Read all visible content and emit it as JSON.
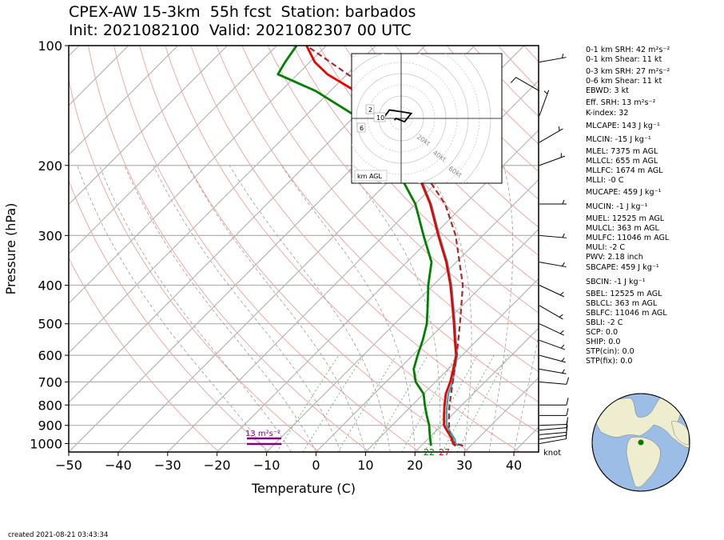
{
  "title": {
    "line1": "CPEX-AW 15-3km  55h fcst  Station: barbados",
    "line2": "Init: 2021082100  Valid: 2021082307 00 UTC"
  },
  "footer": {
    "created": "created 2021-08-21 03:43:34"
  },
  "params": [
    "0-1 km SRH: 42 m²s⁻²",
    "0-1 km Shear: 11 kt",
    "0-3 km SRH: 27 m²s⁻²",
    "0-6 km Shear: 11 kt",
    "EBWD: 3 kt",
    "Eff. SRH: 13 m²s⁻²",
    "K-index: 32",
    "MLCAPE: 143 J kg⁻¹",
    "MLCIN: -15 J kg⁻¹",
    "MLEL: 7375 m AGL",
    "MLLCL: 655 m AGL",
    "MLLFC: 1674 m AGL",
    "MLLI: -0 C",
    "MUCAPE: 459 J kg⁻¹",
    "MUCIN: -1 J kg⁻¹",
    "MUEL: 12525 m AGL",
    "MULCL: 363 m AGL",
    "MULFC: 11046 m AGL",
    "MULI: -2 C",
    "PWV: 2.18 inch",
    "SBCAPE: 459 J kg⁻¹",
    "SBCIN: -1 J kg⁻¹",
    "SBEL: 12525 m AGL",
    "SBLCL: 363 m AGL",
    "SBLFC: 11046 m AGL",
    "SBLI: -2 C",
    "SCP: 0.0",
    "SHIP: 0.0",
    "STP(cin): 0.0",
    "STP(fix): 0.0"
  ],
  "chart_data": {
    "type": "skew-t",
    "xlabel": "Temperature (C)",
    "ylabel": "Pressure (hPa)",
    "xlim": [
      -50,
      45
    ],
    "ylim": [
      1050,
      100
    ],
    "xticks": [
      "−50",
      "−40",
      "−30",
      "−20",
      "−10",
      "0",
      "10",
      "20",
      "30",
      "40"
    ],
    "yticks": [
      "100",
      "200",
      "300",
      "400",
      "500",
      "600",
      "700",
      "800",
      "900",
      "1000"
    ],
    "surface_labels": {
      "dewpoint": "22",
      "temperature": "27"
    },
    "srh_label": "13 m²s⁻²",
    "barb_unit": "knot",
    "colors": {
      "temperature": "#ee0000",
      "dewpoint": "#008000",
      "virtual": "#20b2b8",
      "parcel": "#a52a2a",
      "srh": "#800080"
    },
    "temperature": [
      [
        1013,
        27
      ],
      [
        1000,
        26
      ],
      [
        975,
        25
      ],
      [
        950,
        23.5
      ],
      [
        925,
        22
      ],
      [
        900,
        20.5
      ],
      [
        850,
        18.5
      ],
      [
        800,
        16.5
      ],
      [
        750,
        14.5
      ],
      [
        700,
        13
      ],
      [
        650,
        11
      ],
      [
        600,
        8.8
      ],
      [
        550,
        5.5
      ],
      [
        500,
        2
      ],
      [
        450,
        -2
      ],
      [
        400,
        -6.5
      ],
      [
        350,
        -12
      ],
      [
        300,
        -19
      ],
      [
        250,
        -27
      ],
      [
        200,
        -38
      ],
      [
        175,
        -45
      ],
      [
        150,
        -55
      ],
      [
        130,
        -65
      ],
      [
        118,
        -74
      ],
      [
        110,
        -79
      ],
      [
        100,
        -84
      ]
    ],
    "virtual_temperature": [
      [
        1013,
        27.5
      ],
      [
        1000,
        26.5
      ],
      [
        975,
        25.5
      ],
      [
        950,
        24
      ],
      [
        925,
        22.5
      ],
      [
        900,
        21
      ],
      [
        850,
        19
      ],
      [
        800,
        17
      ],
      [
        750,
        15
      ],
      [
        700,
        13.5
      ],
      [
        650,
        11.3
      ],
      [
        600,
        9
      ],
      [
        550,
        5.7
      ],
      [
        500,
        2.2
      ],
      [
        450,
        -1.8
      ],
      [
        400,
        -6.3
      ],
      [
        350,
        -11.8
      ],
      [
        300,
        -18.8
      ],
      [
        250,
        -26.8
      ],
      [
        200,
        -37.8
      ],
      [
        175,
        -44.8
      ],
      [
        150,
        -54.8
      ],
      [
        130,
        -64.8
      ],
      [
        118,
        -74
      ],
      [
        110,
        -79
      ],
      [
        100,
        -84
      ]
    ],
    "dewpoint": [
      [
        1013,
        22
      ],
      [
        1000,
        21.5
      ],
      [
        975,
        20.5
      ],
      [
        950,
        19.5
      ],
      [
        925,
        18.5
      ],
      [
        900,
        17.5
      ],
      [
        850,
        15
      ],
      [
        800,
        12.5
      ],
      [
        750,
        10
      ],
      [
        700,
        6
      ],
      [
        650,
        3
      ],
      [
        600,
        1
      ],
      [
        550,
        -1
      ],
      [
        500,
        -3.5
      ],
      [
        450,
        -7
      ],
      [
        400,
        -11
      ],
      [
        350,
        -15
      ],
      [
        300,
        -22
      ],
      [
        250,
        -30
      ],
      [
        200,
        -42
      ],
      [
        175,
        -50
      ],
      [
        150,
        -60
      ],
      [
        130,
        -73
      ],
      [
        118,
        -84
      ],
      [
        110,
        -85
      ],
      [
        100,
        -86
      ]
    ],
    "parcel": [
      [
        1013,
        28.5
      ],
      [
        1000,
        26.5
      ],
      [
        975,
        24.5
      ],
      [
        950,
        23.5
      ],
      [
        900,
        21.5
      ],
      [
        850,
        19.5
      ],
      [
        800,
        17.5
      ],
      [
        700,
        13.5
      ],
      [
        600,
        8.9
      ],
      [
        500,
        3.2
      ],
      [
        400,
        -4
      ],
      [
        300,
        -15.5
      ],
      [
        250,
        -24
      ],
      [
        200,
        -37
      ],
      [
        150,
        -53
      ],
      [
        125,
        -65
      ],
      [
        100,
        -84
      ]
    ],
    "wind_barbs": [
      {
        "p": 1000,
        "dir": 80,
        "spd": 11
      },
      {
        "p": 975,
        "dir": 82,
        "spd": 11
      },
      {
        "p": 950,
        "dir": 85,
        "spd": 11
      },
      {
        "p": 925,
        "dir": 85,
        "spd": 12
      },
      {
        "p": 900,
        "dir": 88,
        "spd": 11
      },
      {
        "p": 850,
        "dir": 90,
        "spd": 10
      },
      {
        "p": 800,
        "dir": 90,
        "spd": 9
      },
      {
        "p": 700,
        "dir": 95,
        "spd": 8
      },
      {
        "p": 650,
        "dir": 100,
        "spd": 7
      },
      {
        "p": 600,
        "dir": 105,
        "spd": 7
      },
      {
        "p": 550,
        "dir": 110,
        "spd": 6
      },
      {
        "p": 500,
        "dir": 115,
        "spd": 6
      },
      {
        "p": 450,
        "dir": 120,
        "spd": 6
      },
      {
        "p": 400,
        "dir": 115,
        "spd": 7
      },
      {
        "p": 350,
        "dir": 100,
        "spd": 6
      },
      {
        "p": 300,
        "dir": 95,
        "spd": 6
      },
      {
        "p": 250,
        "dir": 90,
        "spd": 6
      },
      {
        "p": 200,
        "dir": 70,
        "spd": 5
      },
      {
        "p": 175,
        "dir": 60,
        "spd": 6
      },
      {
        "p": 150,
        "dir": 20,
        "spd": 7
      },
      {
        "p": 130,
        "dir": 300,
        "spd": 8
      },
      {
        "p": 110,
        "dir": 80,
        "spd": 6
      }
    ],
    "hodograph": {
      "ring_labels": [
        "20kt",
        "40kt",
        "60kt",
        "80kt"
      ],
      "height_labels": [
        "2",
        "10",
        "6"
      ],
      "legend": "km AGL",
      "points": [
        [
          -7,
          -1
        ],
        [
          -6.5,
          0.5
        ],
        [
          -5,
          -0.5
        ],
        [
          -3.5,
          -2.5
        ],
        [
          0,
          -2
        ],
        [
          3,
          -1.5
        ],
        [
          1,
          1
        ],
        [
          -1.5,
          0
        ],
        [
          -2,
          0.5
        ]
      ]
    },
    "inset_globe": {
      "station_lon": -59.5,
      "station_lat": 13.1
    }
  }
}
